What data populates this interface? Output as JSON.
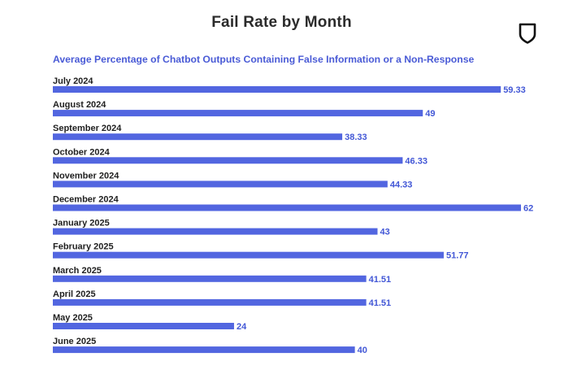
{
  "colors": {
    "bar": "#5266e0",
    "value_label": "#4257d6",
    "title": "#2b2b2b",
    "subtitle": "#4a5bd6"
  },
  "logo": {
    "icon": "shield-icon"
  },
  "chart_data": {
    "type": "bar",
    "orientation": "horizontal",
    "title": "Fail Rate by Month",
    "subtitle": "Average Percentage of Chatbot Outputs Containing False Information or a Non-Response",
    "categories": [
      "July 2024",
      "August 2024",
      "September 2024",
      "October 2024",
      "November 2024",
      "December 2024",
      "January 2025",
      "February 2025",
      "March 2025",
      "April 2025",
      "May 2025",
      "June 2025"
    ],
    "values": [
      59.33,
      49,
      38.33,
      46.33,
      44.33,
      62,
      43,
      51.77,
      41.51,
      41.51,
      24,
      40
    ],
    "value_labels": [
      "59.33",
      "49",
      "38.33",
      "46.33",
      "44.33",
      "62",
      "43",
      "51.77",
      "41.51",
      "41.51",
      "24",
      "40"
    ],
    "xlim": [
      0,
      62
    ],
    "grid": false,
    "legend": "none"
  }
}
